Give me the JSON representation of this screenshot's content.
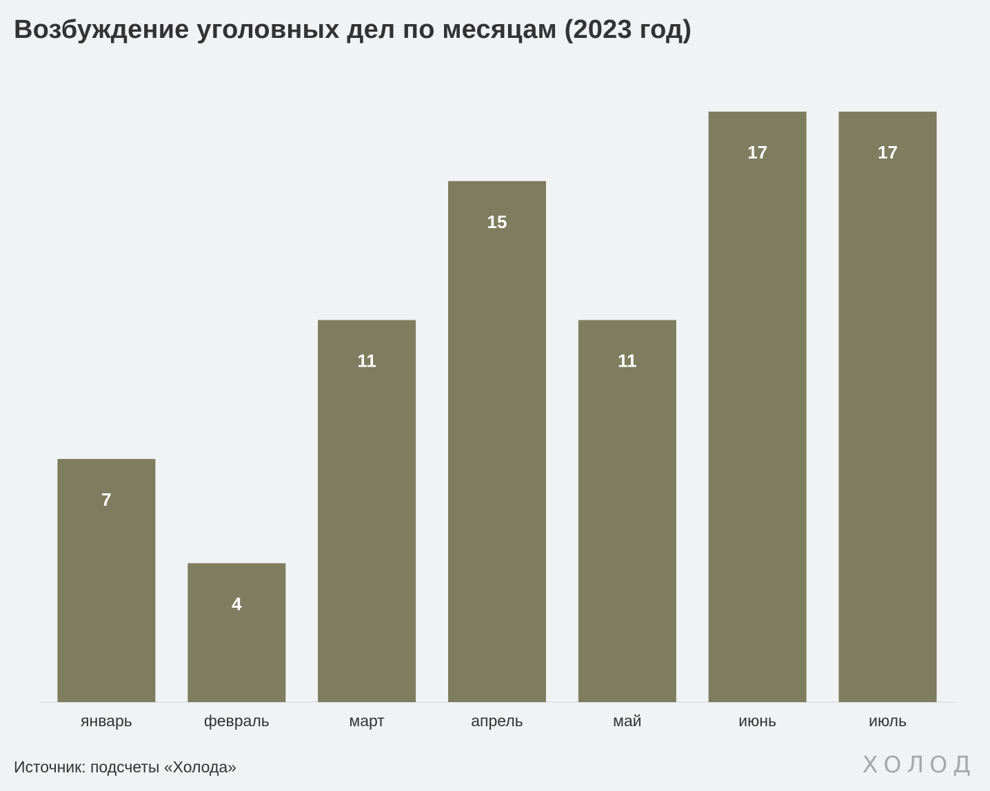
{
  "chart_data": {
    "type": "bar",
    "title": "Возбуждение уголовных дел по месяцам (2023 год)",
    "categories": [
      "январь",
      "февраль",
      "март",
      "апрель",
      "май",
      "июнь",
      "июль"
    ],
    "values": [
      7,
      4,
      11,
      15,
      11,
      17,
      17
    ],
    "ylim": [
      0,
      17
    ],
    "grid": false,
    "data_labels": true,
    "bar_color": "#7f7d5f",
    "label_color": "#ffffff"
  },
  "footer": {
    "source": "Источник: подсчеты «Холода»",
    "brand": "ХОЛОД"
  }
}
